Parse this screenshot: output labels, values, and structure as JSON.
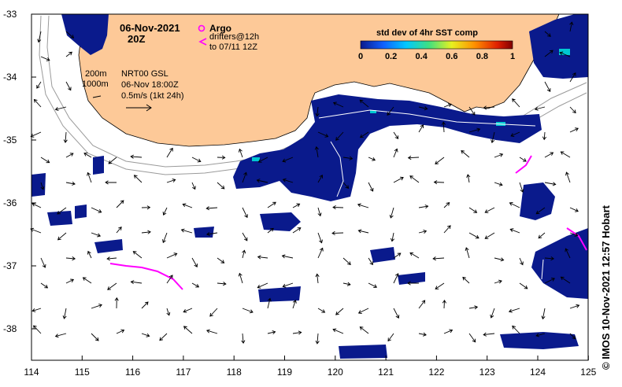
{
  "header": {
    "date": "06-Nov-2021",
    "time": "20Z"
  },
  "legend": {
    "argo_label": "Argo",
    "drifters_line1": "drifters@12h",
    "drifters_line2": "to 07/11 12Z",
    "argo_color": "#ff00ff"
  },
  "colorbar": {
    "title": "std dev of 4hr SST comp",
    "ticks": [
      "0",
      "0.2",
      "0.4",
      "0.6",
      "0.8",
      "1"
    ]
  },
  "notes": {
    "iso_200": "200m",
    "iso_1000": "1000m",
    "product": "NRT00 GSL",
    "product_time": "06-Nov 18:00Z",
    "scale": "0.5m/s (1kt 24h)"
  },
  "axes": {
    "lon_ticks": [
      "114",
      "115",
      "116",
      "117",
      "118",
      "119",
      "120",
      "121",
      "122",
      "123",
      "124",
      "125"
    ],
    "lat_ticks": [
      "-33",
      "-34",
      "-35",
      "-36",
      "-37",
      "-38"
    ]
  },
  "credit": "© IMOS 10-Nov-2021 12:57 Hobart",
  "colors": {
    "land": "#fdc998",
    "sst_low": "#0a1a8c",
    "sst_mid": "#00c8d2",
    "frame": "#000000"
  }
}
